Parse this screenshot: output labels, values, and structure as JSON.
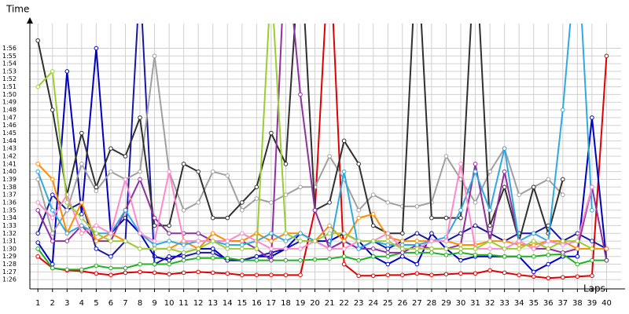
{
  "chart_data": {
    "type": "line",
    "y_label": "Time",
    "x_label": "Laps",
    "grid": true,
    "x": [
      1,
      2,
      3,
      4,
      5,
      6,
      7,
      8,
      9,
      10,
      11,
      12,
      13,
      14,
      15,
      16,
      17,
      18,
      19,
      20,
      21,
      22,
      23,
      24,
      25,
      26,
      27,
      28,
      29,
      30,
      31,
      32,
      33,
      34,
      35,
      36,
      37,
      38,
      39,
      40
    ],
    "xlim": [
      0.45,
      41
    ],
    "xticks": [
      1,
      2,
      3,
      4,
      5,
      6,
      7,
      8,
      9,
      10,
      11,
      12,
      13,
      14,
      15,
      16,
      17,
      18,
      19,
      20,
      21,
      22,
      23,
      24,
      25,
      26,
      27,
      28,
      29,
      30,
      31,
      32,
      33,
      34,
      35,
      36,
      37,
      38,
      39,
      40
    ],
    "ylim": [
      84.8,
      119.2
    ],
    "yticks": [
      {
        "value": 86,
        "label": "1:26"
      },
      {
        "value": 87,
        "label": "1:27"
      },
      {
        "value": 88,
        "label": "1:28"
      },
      {
        "value": 89,
        "label": "1:29"
      },
      {
        "value": 90,
        "label": "1:30"
      },
      {
        "value": 91,
        "label": "1:31"
      },
      {
        "value": 92,
        "label": "1:32"
      },
      {
        "value": 93,
        "label": "1:33"
      },
      {
        "value": 94,
        "label": "1:34"
      },
      {
        "value": 95,
        "label": "1:35"
      },
      {
        "value": 96,
        "label": "1:36"
      },
      {
        "value": 97,
        "label": "1:37"
      },
      {
        "value": 98,
        "label": "1:38"
      },
      {
        "value": 99,
        "label": "1:39"
      },
      {
        "value": 100,
        "label": "1:40"
      },
      {
        "value": 101,
        "label": "1:41"
      },
      {
        "value": 102,
        "label": "1:42"
      },
      {
        "value": 103,
        "label": "1:43"
      },
      {
        "value": 104,
        "label": "1:44"
      },
      {
        "value": 105,
        "label": "1:45"
      },
      {
        "value": 106,
        "label": "1:46"
      },
      {
        "value": 107,
        "label": "1:47"
      },
      {
        "value": 108,
        "label": "1:48"
      },
      {
        "value": 109,
        "label": "1:49"
      },
      {
        "value": 110,
        "label": "1:50"
      },
      {
        "value": 111,
        "label": "1:51"
      },
      {
        "value": 112,
        "label": "1:52"
      },
      {
        "value": 113,
        "label": "1:53"
      },
      {
        "value": 114,
        "label": "1:54"
      },
      {
        "value": 115,
        "label": "1:55"
      },
      {
        "value": 116,
        "label": "1:56"
      }
    ],
    "series": [
      {
        "color": "#e00000",
        "values": [
          89,
          87.5,
          87.2,
          87.1,
          86.8,
          86.6,
          86.9,
          87,
          86.9,
          86.7,
          86.9,
          87,
          86.9,
          86.8,
          86.6,
          86.6,
          86.6,
          86.6,
          86.6,
          95,
          130,
          88,
          86.5,
          86.5,
          86.6,
          86.6,
          86.8,
          86.6,
          86.7,
          86.8,
          86.8,
          87.2,
          86.9,
          86.6,
          86.4,
          86.2,
          86.3,
          86.4,
          86.5,
          115
        ]
      },
      {
        "color": "#0000c0",
        "values": [
          90.8,
          88,
          113,
          94.5,
          116,
          92,
          94,
          92,
          89,
          88.5,
          89.5,
          90,
          90,
          88.5,
          88.5,
          89,
          89,
          90,
          92,
          91,
          91,
          92,
          91,
          89,
          88,
          89,
          88,
          92,
          90,
          88.5,
          89,
          89,
          89,
          89,
          87,
          88,
          89,
          89,
          107,
          88.5
        ]
      },
      {
        "color": "#1818a8",
        "values": [
          92,
          97,
          95,
          96,
          90,
          89,
          91,
          125,
          88,
          89,
          89,
          89.5,
          89.5,
          88.5,
          88.5,
          89,
          89.5,
          90,
          91,
          91,
          90,
          91,
          90,
          91,
          90,
          91,
          92,
          91,
          91,
          92,
          93,
          92,
          91,
          92,
          92,
          93,
          91,
          92,
          91,
          90
        ]
      },
      {
        "color": "#a0a0a0",
        "values": [
          99,
          92,
          95,
          101,
          97.5,
          100,
          99,
          100,
          115,
          100,
          95,
          96,
          100,
          99.5,
          95,
          96.5,
          96,
          97,
          98,
          98,
          102,
          99,
          95,
          97,
          96,
          95.5,
          95.5,
          96,
          102,
          99,
          96,
          100,
          103,
          97,
          98,
          99,
          97,
          null,
          null,
          null
        ]
      },
      {
        "color": "#303030",
        "values": [
          117,
          108,
          97,
          105,
          98,
          103,
          102,
          107,
          93,
          93,
          101,
          100,
          94,
          94,
          96,
          98,
          105,
          101,
          130,
          95,
          96,
          104,
          101,
          93,
          92,
          92,
          130,
          94,
          94,
          94,
          130,
          93,
          98,
          91,
          98,
          92,
          99,
          null,
          null,
          null
        ]
      },
      {
        "color": "#20b020",
        "values": [
          90,
          87.5,
          87.3,
          87.3,
          87.8,
          87.5,
          87.5,
          88,
          88,
          88,
          88.5,
          88.8,
          88.8,
          88.8,
          88.5,
          88.5,
          88.5,
          88.5,
          88.5,
          88.6,
          88.7,
          89,
          88.5,
          89,
          89,
          89.5,
          89.5,
          89.5,
          89.2,
          89.5,
          89.2,
          89.2,
          89,
          89,
          89,
          89.2,
          89.3,
          88,
          88.5,
          88.5
        ]
      },
      {
        "color": "#9030a0",
        "values": [
          95,
          91,
          91,
          93,
          91,
          91,
          95,
          99,
          94,
          92,
          92,
          92,
          91,
          91,
          91,
          90,
          88.5,
          130,
          110,
          95,
          90,
          91,
          90,
          90,
          89.5,
          89.5,
          90.5,
          90,
          90,
          90.5,
          101,
          91,
          100,
          91,
          90,
          90,
          89.5,
          90,
          98,
          88.5
        ]
      },
      {
        "color": "#ff8c00",
        "values": [
          101,
          99,
          92,
          96,
          91,
          92,
          91,
          90,
          90,
          90,
          91,
          90,
          92,
          91,
          91,
          92,
          91,
          92,
          92,
          91,
          93,
          91,
          94,
          94.5,
          91.5,
          91,
          91,
          91,
          91,
          90.5,
          90.5,
          91,
          91,
          90.5,
          90.5,
          91,
          91,
          90,
          90,
          90
        ]
      },
      {
        "color": "#30a8e0",
        "values": [
          100,
          95,
          92,
          93,
          92,
          92,
          95,
          92,
          90.5,
          91,
          90.5,
          91,
          91,
          90.5,
          90.5,
          91,
          92,
          91,
          92,
          91,
          90,
          100,
          90,
          91,
          90.5,
          90.5,
          90.5,
          91,
          91.5,
          95,
          100,
          95,
          103,
          91,
          92,
          91,
          108,
          130,
          95,
          null
        ]
      },
      {
        "color": "#ff88cc",
        "values": [
          96,
          94,
          97,
          92,
          93,
          92,
          99,
          92,
          91,
          100,
          91,
          91,
          91,
          91,
          92,
          91,
          90,
          90,
          90,
          91,
          90,
          90,
          91,
          91,
          92,
          90,
          90,
          91,
          91,
          101,
          90,
          90,
          90,
          91,
          90,
          91,
          90.5,
          91,
          98,
          null
        ]
      },
      {
        "color": "#9acd32",
        "values": [
          111,
          113,
          96,
          94,
          92,
          91,
          91,
          90,
          90,
          90,
          89.5,
          90,
          91,
          90,
          90,
          90,
          125,
          92,
          91,
          91,
          92,
          92,
          91,
          91,
          91,
          90,
          90,
          90,
          90,
          90,
          90,
          91,
          90,
          90,
          91,
          90,
          91,
          91,
          90,
          null
        ]
      }
    ]
  }
}
